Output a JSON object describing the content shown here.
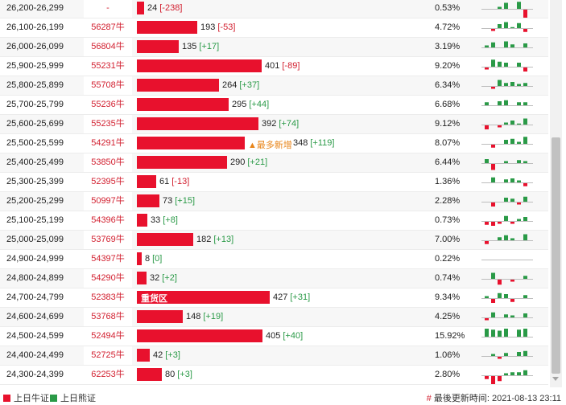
{
  "colors": {
    "bull": "#e8112d",
    "bear": "#2a9a47",
    "code_text": "#d21f2f",
    "badge": "#e8851a"
  },
  "rows": [
    {
      "range": "26,200-26,299",
      "code": "-",
      "count": 24,
      "change": "[-238]",
      "pct": "0.53%",
      "badge": "",
      "bar_label": "",
      "spark": [
        0,
        0,
        2,
        6,
        0,
        7,
        -8,
        0
      ]
    },
    {
      "range": "26,100-26,199",
      "code": "56287牛",
      "count": 193,
      "change": "[-53]",
      "pct": "4.72%",
      "badge": "",
      "bar_label": "",
      "spark": [
        0,
        -2,
        4,
        6,
        1,
        5,
        -3,
        0
      ]
    },
    {
      "range": "26,000-26,099",
      "code": "56804牛",
      "count": 135,
      "change": "[+17]",
      "pct": "3.19%",
      "badge": "",
      "bar_label": "",
      "spark": [
        2,
        5,
        0,
        6,
        3,
        0,
        4,
        0
      ]
    },
    {
      "range": "25,900-25,999",
      "code": "55231牛",
      "count": 401,
      "change": "[-89]",
      "pct": "9.20%",
      "badge": "",
      "bar_label": "",
      "spark": [
        -2,
        7,
        5,
        4,
        0,
        4,
        -4,
        0
      ]
    },
    {
      "range": "25,800-25,899",
      "code": "55708牛",
      "count": 264,
      "change": "[+37]",
      "pct": "6.34%",
      "badge": "",
      "bar_label": "",
      "spark": [
        0,
        -2,
        6,
        3,
        4,
        2,
        3,
        0
      ]
    },
    {
      "range": "25,700-25,799",
      "code": "55236牛",
      "count": 295,
      "change": "[+44]",
      "pct": "6.68%",
      "badge": "",
      "bar_label": "",
      "spark": [
        3,
        0,
        4,
        5,
        0,
        3,
        3,
        0
      ]
    },
    {
      "range": "25,600-25,699",
      "code": "55235牛",
      "count": 392,
      "change": "[+74]",
      "pct": "9.12%",
      "badge": "",
      "bar_label": "",
      "spark": [
        -4,
        0,
        -2,
        2,
        4,
        1,
        6,
        0
      ]
    },
    {
      "range": "25,500-25,599",
      "code": "54291牛",
      "count": 348,
      "change": "[+119]",
      "pct": "8.07%",
      "badge": "▲最多新增",
      "bar_label": "",
      "spark": [
        0,
        -3,
        0,
        4,
        5,
        2,
        7,
        0
      ]
    },
    {
      "range": "25,400-25,499",
      "code": "53850牛",
      "count": 290,
      "change": "[+21]",
      "pct": "6.44%",
      "badge": "",
      "bar_label": "",
      "spark": [
        4,
        -6,
        0,
        2,
        0,
        3,
        2,
        0
      ]
    },
    {
      "range": "25,300-25,399",
      "code": "52395牛",
      "count": 61,
      "change": "[-13]",
      "pct": "1.36%",
      "badge": "",
      "bar_label": "",
      "spark": [
        0,
        5,
        0,
        3,
        4,
        2,
        -3,
        0
      ]
    },
    {
      "range": "25,200-25,299",
      "code": "50997牛",
      "count": 73,
      "change": "[+15]",
      "pct": "2.28%",
      "badge": "",
      "bar_label": "",
      "spark": [
        0,
        -4,
        0,
        4,
        3,
        -2,
        5,
        0
      ]
    },
    {
      "range": "25,100-25,199",
      "code": "54396牛",
      "count": 33,
      "change": "[+8]",
      "pct": "0.73%",
      "badge": "",
      "bar_label": "",
      "spark": [
        -3,
        -4,
        -2,
        5,
        -2,
        2,
        4,
        0
      ]
    },
    {
      "range": "25,000-25,099",
      "code": "53769牛",
      "count": 182,
      "change": "[+13]",
      "pct": "7.00%",
      "badge": "",
      "bar_label": "",
      "spark": [
        -3,
        0,
        3,
        5,
        2,
        0,
        6,
        0
      ]
    },
    {
      "range": "24,900-24,999",
      "code": "54397牛",
      "count": 8,
      "change": "[0]",
      "pct": "0.22%",
      "badge": "",
      "bar_label": "",
      "spark": [
        0,
        0,
        0,
        0,
        0,
        0,
        0,
        0
      ]
    },
    {
      "range": "24,800-24,899",
      "code": "54290牛",
      "count": 32,
      "change": "[+2]",
      "pct": "0.74%",
      "badge": "",
      "bar_label": "",
      "spark": [
        0,
        6,
        -5,
        0,
        -2,
        0,
        3,
        0
      ]
    },
    {
      "range": "24,700-24,799",
      "code": "52383牛",
      "count": 427,
      "change": "[+31]",
      "pct": "9.34%",
      "badge": "",
      "bar_label": "重货区",
      "spark": [
        2,
        -4,
        5,
        4,
        -3,
        0,
        3,
        0
      ]
    },
    {
      "range": "24,600-24,699",
      "code": "53768牛",
      "count": 148,
      "change": "[+19]",
      "pct": "4.25%",
      "badge": "",
      "bar_label": "",
      "spark": [
        -2,
        5,
        0,
        3,
        2,
        0,
        4,
        0
      ]
    },
    {
      "range": "24,500-24,599",
      "code": "52494牛",
      "count": 405,
      "change": "[+40]",
      "pct": "15.92%",
      "badge": "",
      "bar_label": "",
      "spark": [
        8,
        7,
        6,
        8,
        0,
        7,
        8,
        0
      ]
    },
    {
      "range": "24,400-24,499",
      "code": "52725牛",
      "count": 42,
      "change": "[+3]",
      "pct": "1.06%",
      "badge": "",
      "bar_label": "",
      "spark": [
        0,
        2,
        -2,
        3,
        0,
        4,
        5,
        0
      ]
    },
    {
      "range": "24,300-24,399",
      "code": "62253牛",
      "count": 80,
      "change": "[+3]",
      "pct": "2.80%",
      "badge": "",
      "bar_label": "",
      "spark": [
        -3,
        -8,
        -5,
        2,
        3,
        3,
        5,
        0
      ]
    }
  ],
  "legend": {
    "bull_label": "上日牛证",
    "bear_label": "上日熊证"
  },
  "footer": {
    "update_prefix": "最後更新時间:",
    "update_time": "2021-08-13 23:11"
  }
}
